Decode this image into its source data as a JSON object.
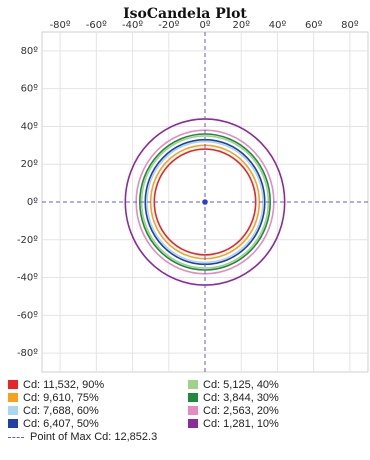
{
  "chart_data": {
    "type": "polar-contour",
    "title": "IsoCandela Plot",
    "x_ticks": [
      "-80º",
      "-60º",
      "-40º",
      "-20º",
      "0º",
      "20º",
      "40º",
      "60º",
      "80º"
    ],
    "y_ticks": [
      "80º",
      "60º",
      "40º",
      "20º",
      "0º",
      "-20º",
      "-40º",
      "-60º",
      "-80º"
    ],
    "xlim": [
      -90,
      90
    ],
    "ylim": [
      -90,
      90
    ],
    "grid": true,
    "series": [
      {
        "name": "Cd: 11,532, 90%",
        "candela": 11532,
        "percent": 90,
        "color": "#e8262a",
        "radius_deg": 28
      },
      {
        "name": "Cd: 9,610, 75%",
        "candela": 9610,
        "percent": 75,
        "color": "#f7a21b",
        "radius_deg": 30
      },
      {
        "name": "Cd: 7,688, 60%",
        "candela": 7688,
        "percent": 60,
        "color": "#a9d7ee",
        "radius_deg": 32
      },
      {
        "name": "Cd: 6,407, 50%",
        "candela": 6407,
        "percent": 50,
        "color": "#1f3fa8",
        "radius_deg": 33
      },
      {
        "name": "Cd: 5,125, 40%",
        "candela": 5125,
        "percent": 40,
        "color": "#9fd38a",
        "radius_deg": 35
      },
      {
        "name": "Cd: 3,844, 30%",
        "candela": 3844,
        "percent": 30,
        "color": "#1e8a3a",
        "radius_deg": 36
      },
      {
        "name": "Cd: 2,563, 20%",
        "candela": 2563,
        "percent": 20,
        "color": "#e68ac3",
        "radius_deg": 38
      },
      {
        "name": "Cd: 1,281, 10%",
        "candela": 1281,
        "percent": 10,
        "color": "#8b2a9e",
        "radius_deg": 44
      }
    ],
    "point_of_max": {
      "label": "Point of Max Cd: 12,852.3",
      "value": 12852.3,
      "x": 0,
      "y": 0,
      "color": "#6a5acd"
    }
  }
}
